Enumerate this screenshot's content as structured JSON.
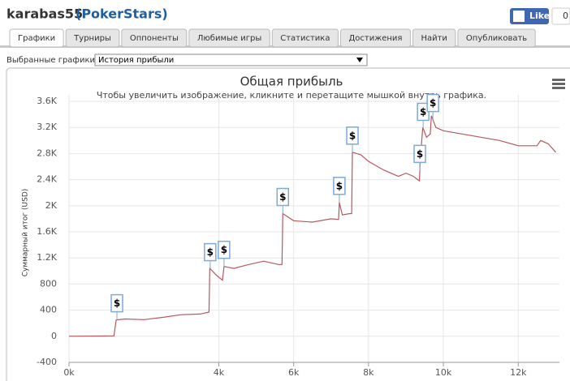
{
  "header": {
    "user": "karabas55",
    "site": "(PokerStars)"
  },
  "like": {
    "label": "Like",
    "count": "0"
  },
  "tabs": [
    "Графики",
    "Турниры",
    "Оппоненты",
    "Любимые игры",
    "Статистика",
    "Достижения",
    "Найти",
    "Опубликовать"
  ],
  "selector": {
    "label": "Выбранные графики:",
    "value": "История прибыли"
  },
  "chart_data": {
    "type": "line",
    "title": "Общая прибыль",
    "subtitle": "Чтобы увеличить изображение, кликните и перетащите мышкой внутрь графика.",
    "y_label": "Суммарный итог (USD)",
    "color": "#b5595e",
    "grid": true,
    "x": [
      0,
      1200,
      1260,
      1500,
      2000,
      2500,
      3000,
      3500,
      3740,
      3760,
      3950,
      4100,
      4140,
      4400,
      4800,
      5200,
      5600,
      5690,
      5710,
      6000,
      6500,
      7000,
      7200,
      7220,
      7300,
      7500,
      7550,
      7570,
      7800,
      8000,
      8400,
      8800,
      9000,
      9200,
      9360,
      9380,
      9450,
      9550,
      9650,
      9680,
      9800,
      10000,
      10500,
      11000,
      11500,
      12000,
      12500,
      12600,
      12800,
      13000
    ],
    "values": [
      0,
      5,
      250,
      265,
      255,
      290,
      330,
      340,
      370,
      1040,
      930,
      860,
      1070,
      1040,
      1100,
      1150,
      1100,
      1100,
      1880,
      1770,
      1750,
      1800,
      1790,
      2050,
      1860,
      1880,
      1880,
      2820,
      2780,
      2680,
      2550,
      2450,
      2500,
      2450,
      2380,
      2700,
      3200,
      3050,
      3100,
      3380,
      3200,
      3150,
      3100,
      3050,
      3000,
      2920,
      2920,
      3000,
      2950,
      2820
    ],
    "flags": [
      {
        "x": 1280,
        "label": "$"
      },
      {
        "x": 3770,
        "label": "$"
      },
      {
        "x": 4140,
        "label": "$"
      },
      {
        "x": 5710,
        "label": "$"
      },
      {
        "x": 7220,
        "label": "$"
      },
      {
        "x": 7570,
        "label": "$"
      },
      {
        "x": 9370,
        "label": "$"
      },
      {
        "x": 9460,
        "label": "$"
      },
      {
        "x": 9720,
        "label": "$"
      }
    ],
    "xlim": [
      0,
      13100
    ],
    "ylim": [
      -400,
      3700
    ],
    "xticks": [
      {
        "value": 0,
        "label": "0k"
      },
      {
        "value": 4000,
        "label": "4k"
      },
      {
        "value": 6000,
        "label": "6k"
      },
      {
        "value": 8000,
        "label": "8k"
      },
      {
        "value": 10000,
        "label": "10k"
      },
      {
        "value": 12000,
        "label": "12k"
      }
    ],
    "yticks": [
      -400,
      0,
      400,
      800,
      {
        "value": 1200,
        "label": "1.2K"
      },
      {
        "value": 1600,
        "label": "1.6K"
      },
      {
        "value": 2000,
        "label": "2K"
      },
      {
        "value": 2400,
        "label": "2.4K"
      },
      {
        "value": 2800,
        "label": "2.8K"
      },
      {
        "value": 3200,
        "label": "3.2K"
      },
      {
        "value": 3600,
        "label": "3.6K"
      }
    ]
  }
}
